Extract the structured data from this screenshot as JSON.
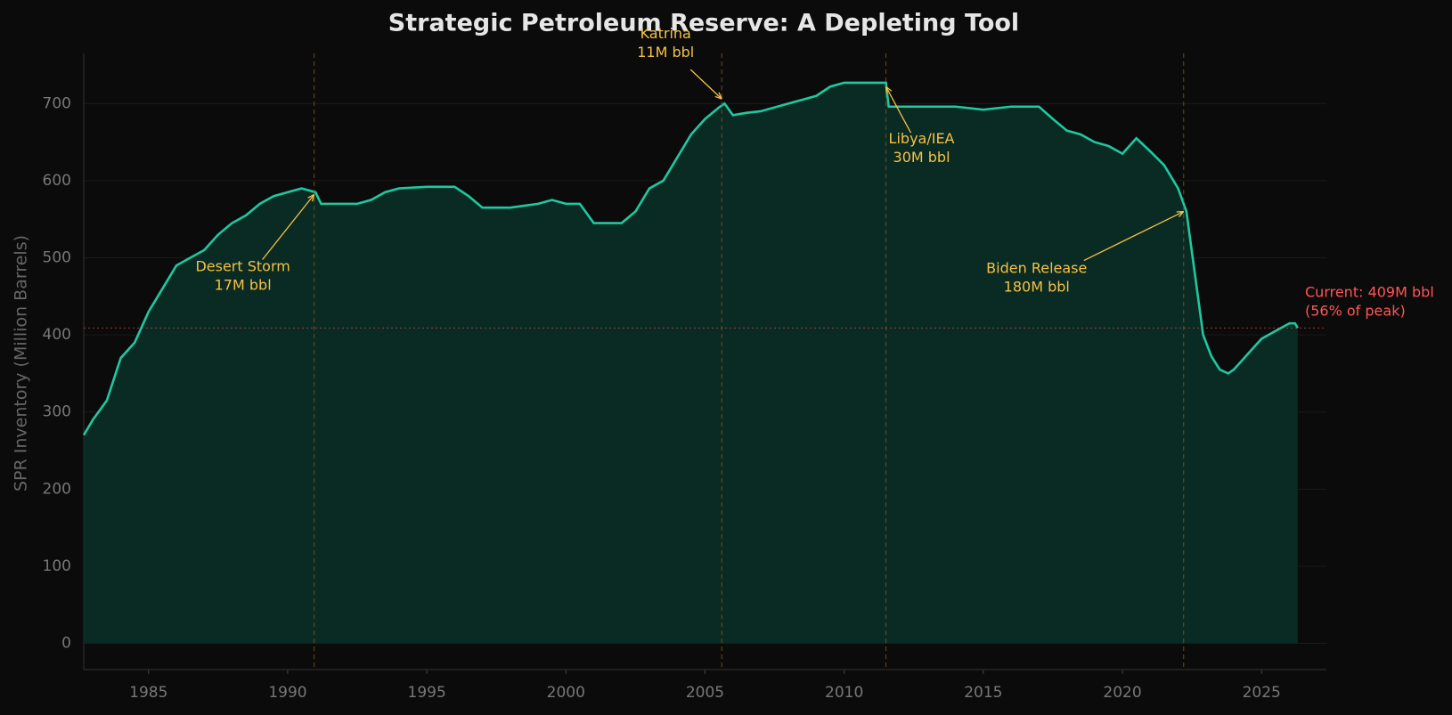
{
  "chart_data": {
    "type": "area",
    "title": "Strategic Petroleum Reserve: A Depleting Tool",
    "y_label": "SPR Inventory (Million Barrels)",
    "line_color": "#1fc8a0",
    "fill_color": "#0a2a24",
    "grid": true,
    "xlim": [
      1982.67,
      2027.33
    ],
    "ylim": [
      -34,
      765
    ],
    "xticks": [
      1985,
      1990,
      1995,
      2000,
      2005,
      2010,
      2015,
      2020,
      2025
    ],
    "yticks": [
      0,
      100,
      200,
      300,
      400,
      500,
      600,
      700
    ],
    "x": [
      1982.67,
      1983,
      1983.5,
      1984,
      1984.5,
      1985,
      1985.5,
      1986,
      1986.5,
      1987,
      1987.5,
      1988,
      1988.5,
      1989,
      1989.5,
      1990,
      1990.5,
      1991,
      1991.2,
      1992,
      1992.5,
      1993,
      1993.5,
      1994,
      1995,
      1996,
      1996.5,
      1997,
      1998,
      1999,
      1999.5,
      2000,
      2000.5,
      2001,
      2002,
      2002.5,
      2003,
      2003.5,
      2004,
      2004.5,
      2005,
      2005.5,
      2005.7,
      2006,
      2006.5,
      2007,
      2008,
      2008.5,
      2009,
      2009.5,
      2010,
      2011,
      2011.5,
      2011.6,
      2012,
      2013,
      2014,
      2015,
      2016,
      2017,
      2017.5,
      2018,
      2018.5,
      2019,
      2019.5,
      2020,
      2020.5,
      2021,
      2021.5,
      2022,
      2022.3,
      2022.6,
      2022.9,
      2023.2,
      2023.5,
      2023.8,
      2024,
      2024.5,
      2025,
      2025.5,
      2026,
      2026.2,
      2026.3
    ],
    "values": [
      270,
      290,
      315,
      370,
      390,
      430,
      460,
      490,
      500,
      510,
      530,
      545,
      555,
      570,
      580,
      585,
      590,
      585,
      570,
      570,
      570,
      575,
      585,
      590,
      592,
      592,
      580,
      565,
      565,
      570,
      575,
      570,
      570,
      545,
      545,
      560,
      590,
      600,
      630,
      660,
      680,
      695,
      700,
      685,
      688,
      690,
      700,
      705,
      710,
      722,
      727,
      727,
      727,
      696,
      696,
      696,
      696,
      692,
      696,
      696,
      680,
      665,
      660,
      650,
      645,
      635,
      655,
      638,
      620,
      590,
      560,
      480,
      400,
      372,
      355,
      350,
      355,
      375,
      395,
      405,
      415,
      415,
      409
    ],
    "events": [
      {
        "x": 1990.95,
        "y": 582,
        "lines": [
          "Desert Storm",
          "17M bbl"
        ]
      },
      {
        "x": 2005.6,
        "y": 706,
        "lines": [
          "Katrina",
          "11M bbl"
        ]
      },
      {
        "x": 2011.5,
        "y": 722,
        "lines": [
          "Libya/IEA",
          "30M bbl"
        ]
      },
      {
        "x": 2022.2,
        "y": 560,
        "lines": [
          "Biden Release",
          "180M bbl"
        ]
      }
    ],
    "current": {
      "value": 409,
      "lines": [
        "Current: 409M bbl",
        "(56% of peak)"
      ]
    }
  }
}
